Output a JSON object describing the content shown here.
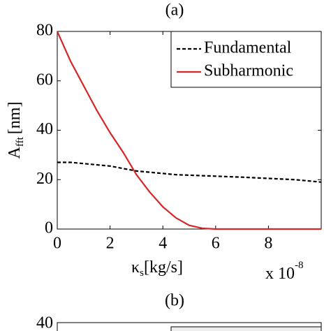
{
  "chart_data": [
    {
      "type": "line",
      "title": "(a)",
      "ylabel": {
        "main": "A",
        "sub": "fft",
        "unit": "[nm]"
      },
      "xlabel": {
        "main": "κ",
        "sub": "s",
        "unit": "[kg/s]"
      },
      "x_multiplier": {
        "base": "x 10",
        "exponent": "-8"
      },
      "x": [
        0,
        0.5,
        1,
        1.5,
        2,
        2.5,
        3,
        3.5,
        4,
        4.5,
        5,
        5.5,
        6,
        7,
        8,
        9,
        10
      ],
      "series": [
        {
          "name": "Fundamental",
          "color": "#000000",
          "dash": true,
          "values": [
            27,
            27,
            26.5,
            26,
            25.5,
            24.5,
            23.5,
            23,
            22.5,
            22,
            21.8,
            21.6,
            21.4,
            21,
            20.5,
            20,
            19
          ]
        },
        {
          "name": "Subharmonic",
          "color": "#d62728",
          "dash": false,
          "values": [
            80,
            68,
            58,
            48,
            39,
            31,
            22,
            15,
            9,
            4.5,
            1.5,
            0.3,
            0,
            0,
            0,
            0,
            0
          ]
        }
      ],
      "xlim": [
        0,
        10
      ],
      "xticks": [
        0,
        2,
        4,
        6,
        8
      ],
      "ylim": [
        0,
        80
      ],
      "yticks": [
        0,
        20,
        40,
        60,
        80
      ],
      "legend": "upper right"
    },
    {
      "type": "line",
      "title": "(b)",
      "yticks": [
        40
      ]
    }
  ]
}
